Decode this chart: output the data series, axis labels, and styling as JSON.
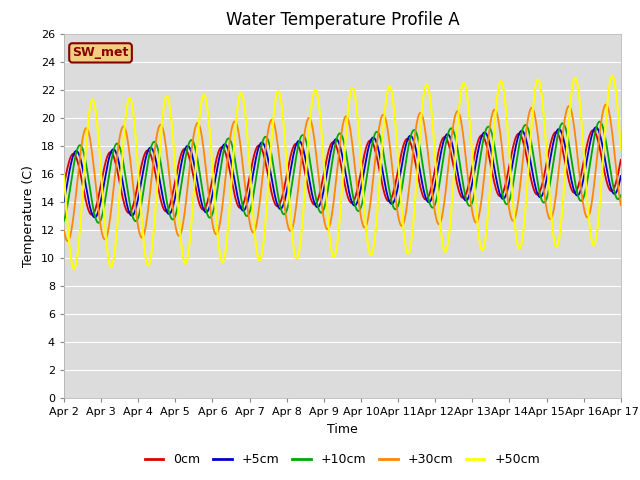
{
  "title": "Water Temperature Profile A",
  "xlabel": "Time",
  "ylabel": "Temperature (C)",
  "ylim": [
    0,
    26
  ],
  "yticks": [
    0,
    2,
    4,
    6,
    8,
    10,
    12,
    14,
    16,
    18,
    20,
    22,
    24,
    26
  ],
  "date_labels": [
    "Apr 2",
    "Apr 3",
    "Apr 4",
    "Apr 5",
    "Apr 6",
    "Apr 7",
    "Apr 8",
    "Apr 9",
    "Apr 10",
    "Apr 11",
    "Apr 12",
    "Apr 13",
    "Apr 14",
    "Apr 15",
    "Apr 16",
    "Apr 17"
  ],
  "legend_label": "SW_met",
  "legend_text_color": "#8B0000",
  "legend_box_facecolor": "#F0D080",
  "legend_box_edgecolor": "#8B0000",
  "series": [
    {
      "label": "0cm",
      "color": "#DD0000",
      "lw": 1.3,
      "amp": 2.2,
      "phase": 0.0
    },
    {
      "label": "+5cm",
      "color": "#0000CC",
      "lw": 1.3,
      "amp": 2.4,
      "phase": 0.08
    },
    {
      "label": "+10cm",
      "color": "#00AA00",
      "lw": 1.3,
      "amp": 2.8,
      "phase": 0.18
    },
    {
      "label": "+30cm",
      "color": "#FF8800",
      "lw": 1.3,
      "amp": 4.0,
      "phase": 0.35
    },
    {
      "label": "+50cm",
      "color": "#FFFF00",
      "lw": 1.5,
      "amp": 6.0,
      "phase": 0.52
    }
  ],
  "base_mean": 15.2,
  "trend": 0.12,
  "n_days": 15,
  "period": 1.0,
  "background_color": "#DCDCDC",
  "figure_background": "#FFFFFF",
  "grid_color": "#FFFFFF",
  "title_fontsize": 12,
  "axis_label_fontsize": 9,
  "tick_fontsize": 8
}
